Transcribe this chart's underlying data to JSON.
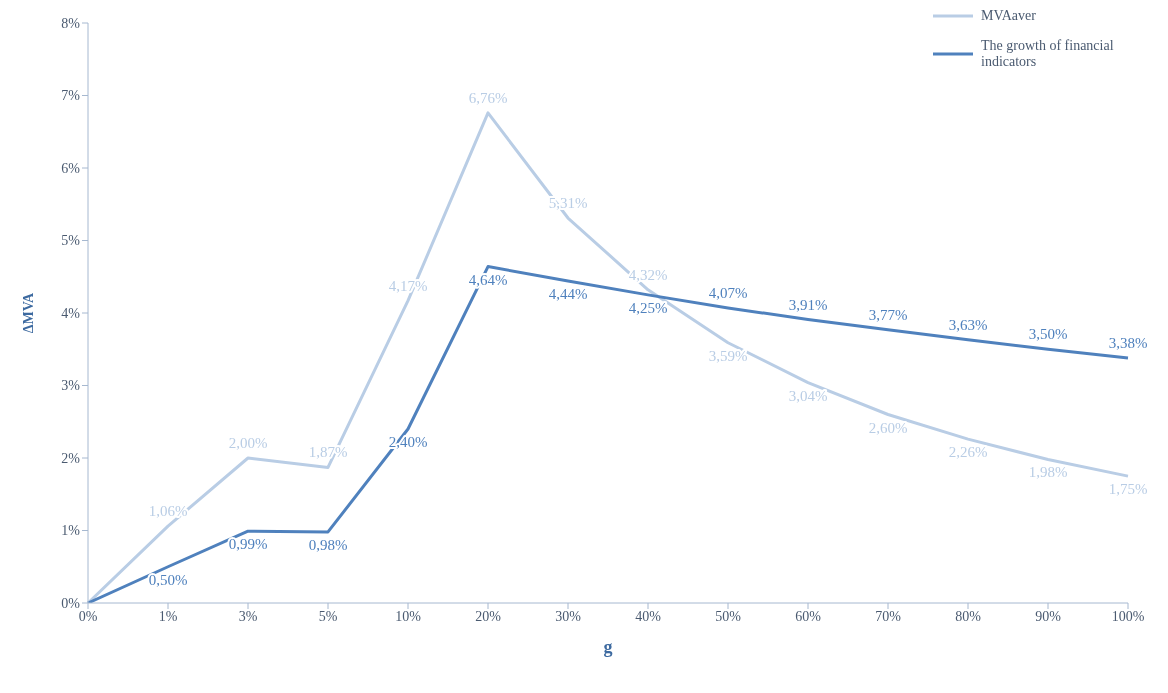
{
  "chart_data": {
    "type": "line",
    "xlabel": "g",
    "ylabel": "ΔMVA",
    "categories": [
      "0%",
      "1%",
      "3%",
      "5%",
      "10%",
      "20%",
      "30%",
      "40%",
      "50%",
      "60%",
      "70%",
      "80%",
      "90%",
      "100%"
    ],
    "series": [
      {
        "name": "MVAaver",
        "color": "#b9cde5",
        "values": [
          0,
          1.06,
          2.0,
          1.87,
          4.17,
          6.76,
          5.31,
          4.32,
          3.59,
          3.04,
          2.6,
          2.26,
          1.98,
          1.75
        ],
        "value_labels": [
          null,
          "1,06%",
          "2,00%",
          "1,87%",
          "4,17%",
          "6,76%",
          "5,31%",
          "4,32%",
          "3,59%",
          "3,04%",
          "2,60%",
          "2,26%",
          "1,98%",
          "1,75%"
        ]
      },
      {
        "name": "The growth of financial indicators",
        "color": "#4f81bd",
        "values": [
          0,
          0.5,
          0.99,
          0.98,
          2.4,
          4.64,
          4.44,
          4.25,
          4.07,
          3.91,
          3.77,
          3.63,
          3.5,
          3.38
        ],
        "value_labels": [
          null,
          "0,50%",
          "0,99%",
          "0,98%",
          "2,40%",
          "4,64%",
          "4,44%",
          "4,25%",
          "4,07%",
          "3,91%",
          "3,77%",
          "3,63%",
          "3,50%",
          "3,38%"
        ]
      }
    ],
    "ylim": [
      0,
      8
    ],
    "yticks": [
      {
        "value": 0,
        "label": "0%"
      },
      {
        "value": 1,
        "label": "1%"
      },
      {
        "value": 2,
        "label": "2%"
      },
      {
        "value": 3,
        "label": "3%"
      },
      {
        "value": 4,
        "label": "4%"
      },
      {
        "value": 5,
        "label": "5%"
      },
      {
        "value": 6,
        "label": "6%"
      },
      {
        "value": 7,
        "label": "7%"
      },
      {
        "value": 8,
        "label": "8%"
      }
    ],
    "grid": false,
    "legend": "top right",
    "marker": "none",
    "line_style": "solid"
  }
}
